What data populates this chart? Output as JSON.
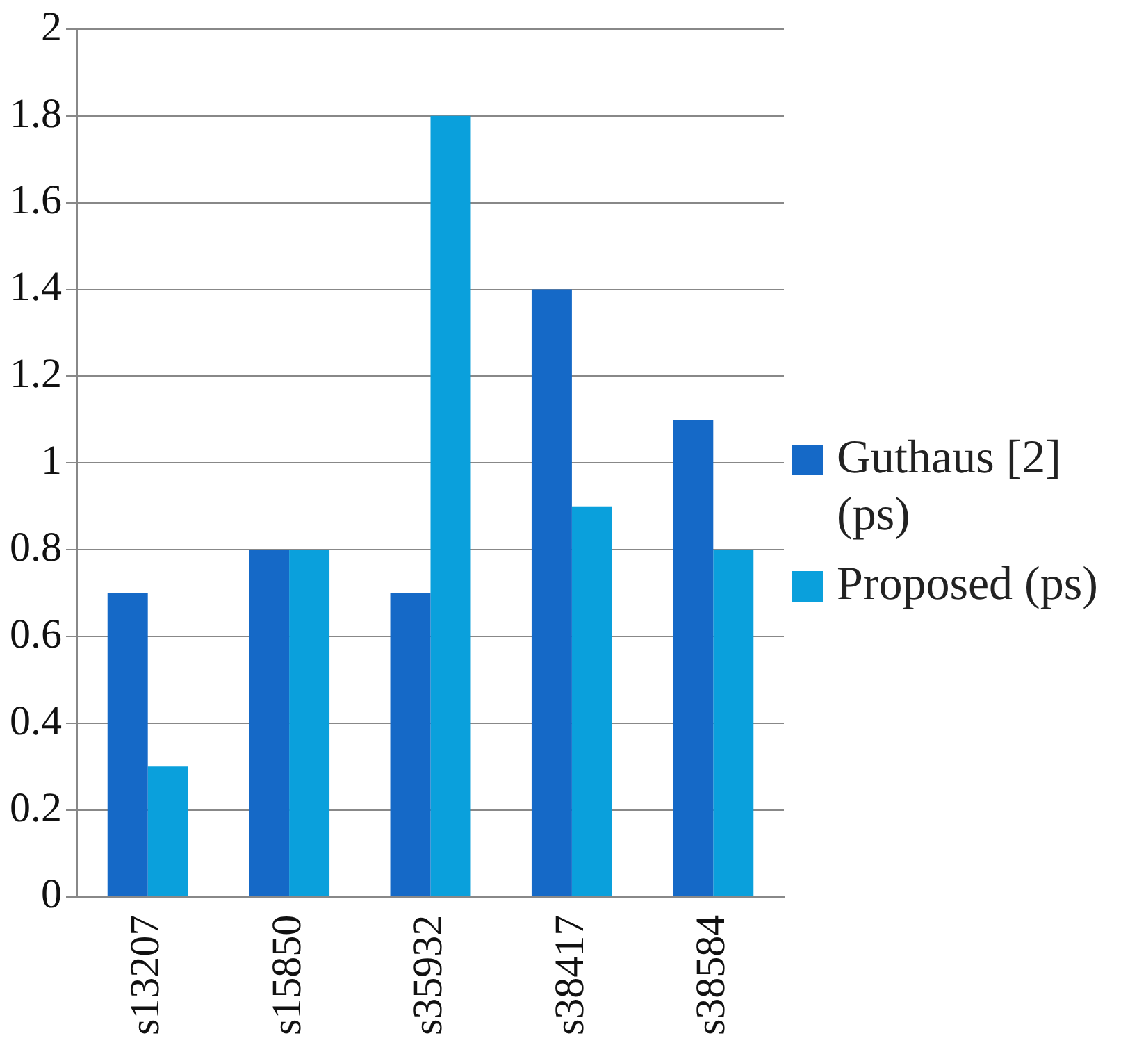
{
  "chart_data": {
    "type": "bar",
    "categories": [
      "s13207",
      "s15850",
      "s35932",
      "s38417",
      "s38584"
    ],
    "series": [
      {
        "name": "Guthaus [2] (ps)",
        "color": "#1569c7",
        "values": [
          0.7,
          0.8,
          0.7,
          1.4,
          1.1
        ]
      },
      {
        "name": "Proposed (ps)",
        "color": "#0aa0dc",
        "values": [
          0.3,
          0.8,
          1.8,
          0.9,
          0.8
        ]
      }
    ],
    "ylim": [
      0,
      2
    ],
    "yticks": [
      0,
      0.2,
      0.4,
      0.6,
      0.8,
      1,
      1.2,
      1.4,
      1.6,
      1.8,
      2
    ],
    "grid": "y",
    "legend": "right"
  }
}
